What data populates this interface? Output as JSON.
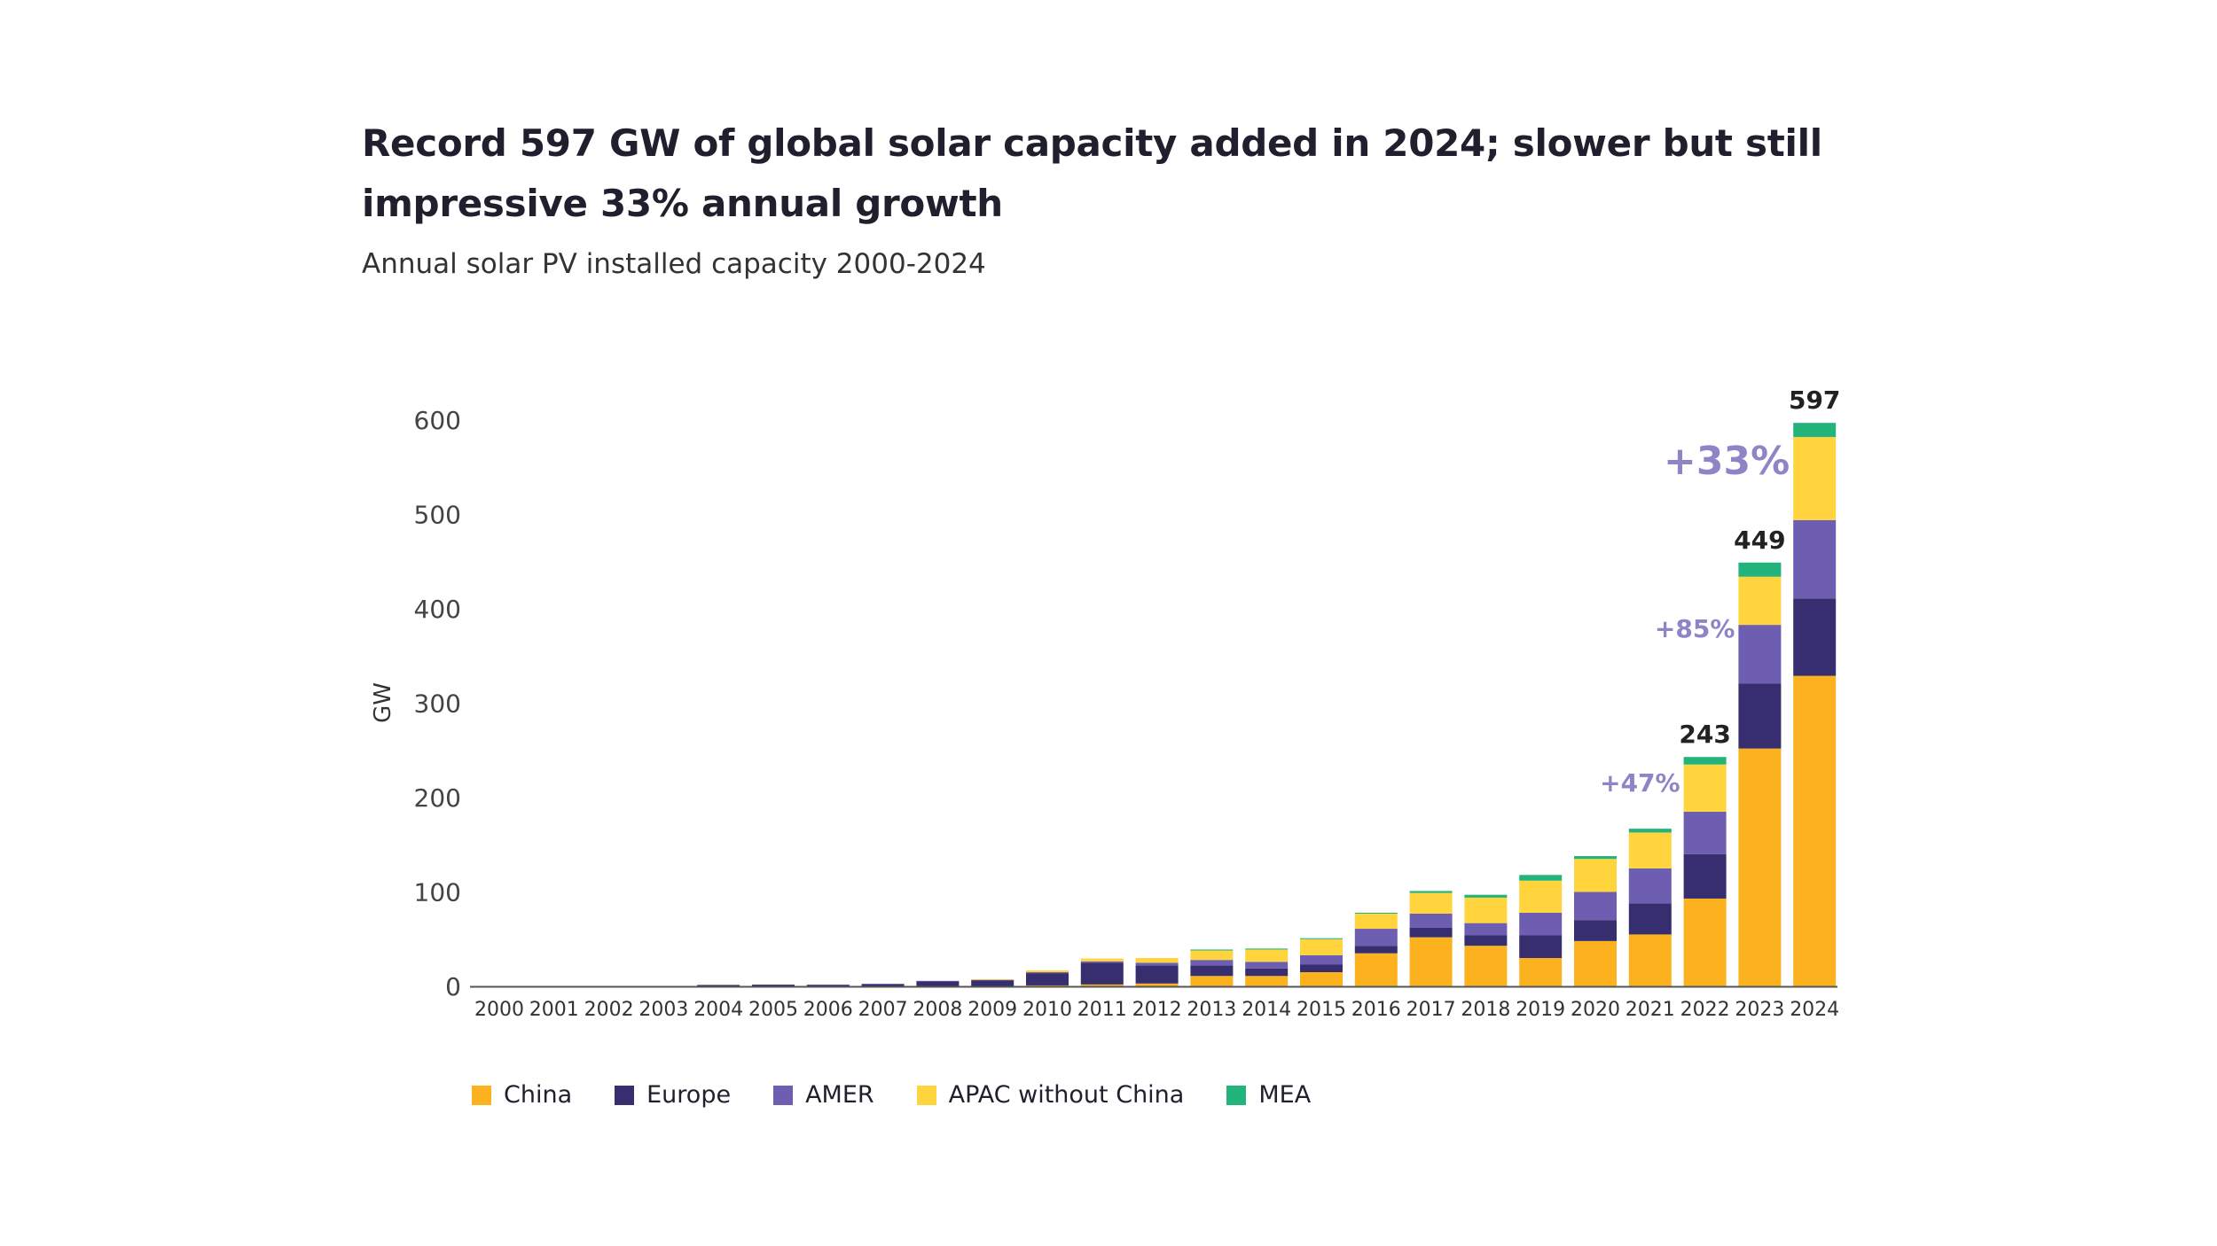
{
  "title": "Record 597 GW of global solar capacity added in 2024; slower but still impressive 33% annual growth",
  "subtitle": "Annual solar PV installed capacity 2000-2024",
  "chart_data": {
    "type": "bar",
    "stacked": true,
    "ylabel": "GW",
    "ylim": [
      0,
      600
    ],
    "yticks": [
      0,
      100,
      200,
      300,
      400,
      500,
      600
    ],
    "grid": false,
    "legend_position": "bottom-left",
    "categories": [
      "2000",
      "2001",
      "2002",
      "2003",
      "2004",
      "2005",
      "2006",
      "2007",
      "2008",
      "2009",
      "2010",
      "2011",
      "2012",
      "2013",
      "2014",
      "2015",
      "2016",
      "2017",
      "2018",
      "2019",
      "2020",
      "2021",
      "2022",
      "2023",
      "2024"
    ],
    "series": [
      {
        "name": "China",
        "color": "#FBB21E",
        "values": [
          0,
          0,
          0,
          0,
          0,
          0,
          0,
          0,
          0,
          0,
          1,
          2,
          3,
          11,
          11,
          15,
          35,
          52,
          43,
          30,
          48,
          55,
          93,
          252,
          329
        ]
      },
      {
        "name": "Europe",
        "color": "#362E6E",
        "values": [
          0,
          0.1,
          0.2,
          0.3,
          1.5,
          1.8,
          1.8,
          2.5,
          5.5,
          6.5,
          13,
          23,
          19,
          11,
          8,
          8,
          8,
          10,
          11,
          24,
          22,
          33,
          47,
          69,
          82
        ]
      },
      {
        "name": "AMER",
        "color": "#6E5EB1",
        "values": [
          0,
          0,
          0,
          0,
          0,
          0,
          0.1,
          0.2,
          0.3,
          0.5,
          1,
          1.5,
          3,
          6,
          7,
          10,
          18,
          15,
          13,
          24,
          30,
          37,
          45,
          62,
          83
        ]
      },
      {
        "name": "APAC without China",
        "color": "#FFD43C",
        "values": [
          0,
          0,
          0,
          0,
          0,
          0,
          0,
          0,
          0,
          0.5,
          2,
          3,
          5,
          10,
          13,
          17,
          16,
          22,
          27,
          34,
          35,
          38,
          50,
          51,
          88
        ]
      },
      {
        "name": "MEA",
        "color": "#22B47A",
        "values": [
          0,
          0,
          0,
          0,
          0,
          0,
          0,
          0,
          0,
          0,
          0,
          0,
          0,
          1,
          1,
          1,
          1,
          2,
          3,
          6,
          3,
          4,
          8,
          15,
          15
        ]
      }
    ],
    "total_labels": [
      {
        "category": "2022",
        "text": "243"
      },
      {
        "category": "2023",
        "text": "449"
      },
      {
        "category": "2024",
        "text": "597"
      }
    ],
    "growth_labels": [
      {
        "category": "2022",
        "text": "+47%",
        "color": "#8E85C6"
      },
      {
        "category": "2023",
        "text": "+85%",
        "color": "#8E85C6"
      },
      {
        "category": "2024",
        "text": "+33%",
        "color": "#8E85C6"
      }
    ]
  }
}
